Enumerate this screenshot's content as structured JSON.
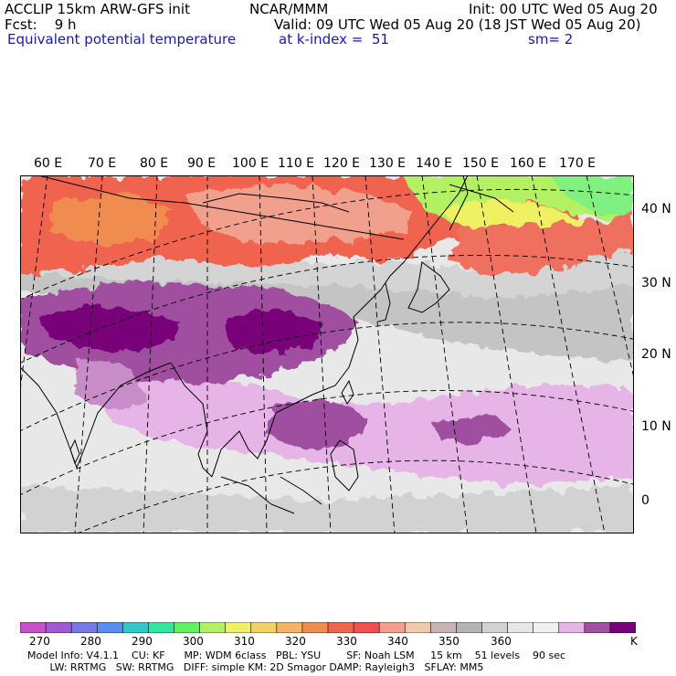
{
  "header": {
    "title": "ACCLIP 15km ARW-GFS init",
    "org": "NCAR/MMM",
    "init": "Init: 00 UTC Wed 05 Aug 20",
    "fcst": "Fcst:    9 h",
    "valid": "Valid: 09 UTC Wed 05 Aug 20 (18 JST Wed 05 Aug 20)",
    "field": "Equivalent potential temperature",
    "level": "at k-index =  51",
    "smooth": "sm= 2"
  },
  "map": {
    "lon_labels": [
      "60 E",
      "70 E",
      "80 E",
      "90 E",
      "100 E",
      "110 E",
      "120 E",
      "130 E",
      "140 E",
      "150 E",
      "160 E",
      "170 E"
    ],
    "lat_labels": [
      "40 N",
      "30 N",
      "20 N",
      "10 N",
      "0"
    ],
    "projection": "polar stereographic / lambert",
    "field_units": "K"
  },
  "colorbar": {
    "unit": "K",
    "ticks": [
      "270",
      "280",
      "290",
      "300",
      "310",
      "320",
      "330",
      "340",
      "350",
      "360"
    ],
    "colors": [
      "#c850c8",
      "#a05ad2",
      "#7878e6",
      "#5a8cf0",
      "#32c8c8",
      "#32e6a0",
      "#64f064",
      "#b4f064",
      "#f0f064",
      "#f0d264",
      "#f0b464",
      "#f08c50",
      "#f06450",
      "#f05050",
      "#f0a08c",
      "#f0c8aa",
      "#c8b4b4",
      "#b4b4b4",
      "#d2d2d2",
      "#e6e6e6",
      "#f0f0f0",
      "#e6b4e6",
      "#a050a0",
      "#780078"
    ]
  },
  "footer": {
    "line1": "Model Info: V4.1.1    CU: KF      MP: WDM 6class   PBL: YSU        SF: Noah LSM     15 km    51 levels    90 sec",
    "line2": "       LW: RRTMG   SW: RRTMG   DIFF: simple KM: 2D Smagor DAMP: Rayleigh3   SFLAY: MM5"
  }
}
